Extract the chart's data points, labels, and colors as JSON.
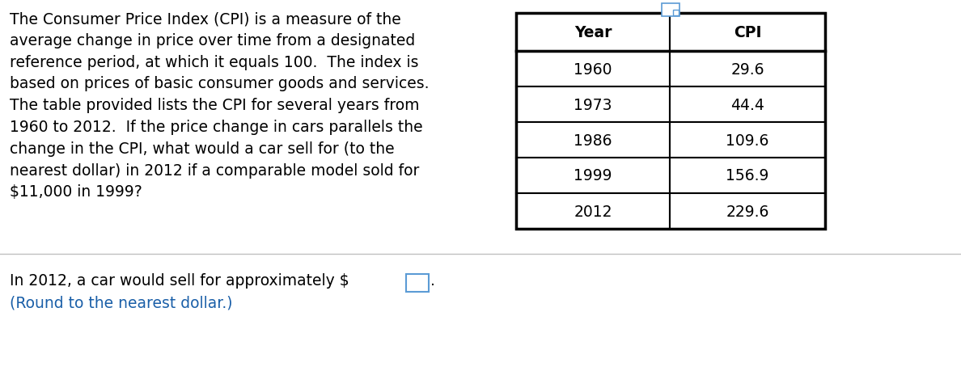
{
  "paragraph_text": "The Consumer Price Index (CPI) is a measure of the\naverage change in price over time from a designated\nreference period, at which it equals 100.  The index is\nbased on prices of basic consumer goods and services.\nThe table provided lists the CPI for several years from\n1960 to 2012.  If the price change in cars parallels the\nchange in the CPI, what would a car sell for (to the\nnearest dollar) in 2012 if a comparable model sold for\n$11,000 in 1999?",
  "table_headers": [
    "Year",
    "CPI"
  ],
  "table_rows": [
    [
      "1960",
      "29.6"
    ],
    [
      "1973",
      "44.4"
    ],
    [
      "1986",
      "109.6"
    ],
    [
      "1999",
      "156.9"
    ],
    [
      "2012",
      "229.6"
    ]
  ],
  "answer_text_black": "In 2012, a car would sell for approximately $",
  "answer_text_blue": "(Round to the nearest dollar.)",
  "bg_color": "#ffffff",
  "text_color": "#000000",
  "blue_color": "#1a5fa8",
  "table_border_color": "#000000",
  "input_box_color": "#5b9bd5",
  "font_size_main": 13.5,
  "font_size_table": 13.5,
  "font_size_answer": 13.5
}
